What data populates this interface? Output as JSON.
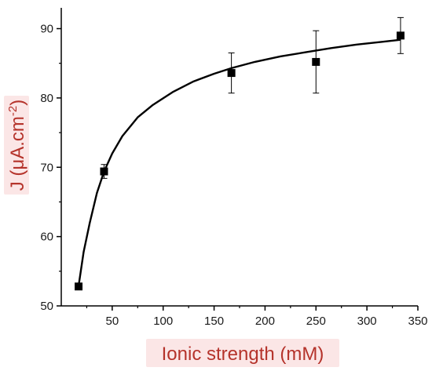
{
  "chart_data": {
    "type": "scatter",
    "title": "",
    "xlabel": "Ionic strength (mM)",
    "ylabel_main": "J (μA.cm",
    "ylabel_sup": "-2",
    "ylabel_close": ")",
    "xlim": [
      0,
      350
    ],
    "ylim": [
      50,
      93
    ],
    "x_ticks": [
      50,
      100,
      150,
      200,
      250,
      300,
      350
    ],
    "y_ticks": [
      50,
      60,
      70,
      80,
      90
    ],
    "grid": false,
    "legend": "none",
    "marker": "square",
    "points": [
      {
        "x": 17,
        "y": 52.8,
        "err": 0
      },
      {
        "x": 42,
        "y": 69.4,
        "err": 1.0
      },
      {
        "x": 167,
        "y": 83.6,
        "err": 2.9
      },
      {
        "x": 250,
        "y": 85.2,
        "err": 4.5
      },
      {
        "x": 333,
        "y": 89.0,
        "err": 2.6
      }
    ],
    "fit_curve": [
      {
        "x": 17,
        "y": 52.9
      },
      {
        "x": 22,
        "y": 57.8
      },
      {
        "x": 28,
        "y": 62.0
      },
      {
        "x": 35,
        "y": 66.3
      },
      {
        "x": 42,
        "y": 69.4
      },
      {
        "x": 50,
        "y": 72.0
      },
      {
        "x": 60,
        "y": 74.5
      },
      {
        "x": 75,
        "y": 77.2
      },
      {
        "x": 90,
        "y": 79.0
      },
      {
        "x": 110,
        "y": 80.9
      },
      {
        "x": 130,
        "y": 82.4
      },
      {
        "x": 150,
        "y": 83.5
      },
      {
        "x": 167,
        "y": 84.3
      },
      {
        "x": 190,
        "y": 85.2
      },
      {
        "x": 215,
        "y": 86.0
      },
      {
        "x": 240,
        "y": 86.6
      },
      {
        "x": 265,
        "y": 87.2
      },
      {
        "x": 290,
        "y": 87.7
      },
      {
        "x": 315,
        "y": 88.1
      },
      {
        "x": 333,
        "y": 88.4
      }
    ],
    "colors": {
      "axis": "#000000",
      "marker": "#000000",
      "curve": "#000000",
      "axis_title": "#b5332b",
      "axis_title_bg": "#fbe6e6"
    }
  }
}
